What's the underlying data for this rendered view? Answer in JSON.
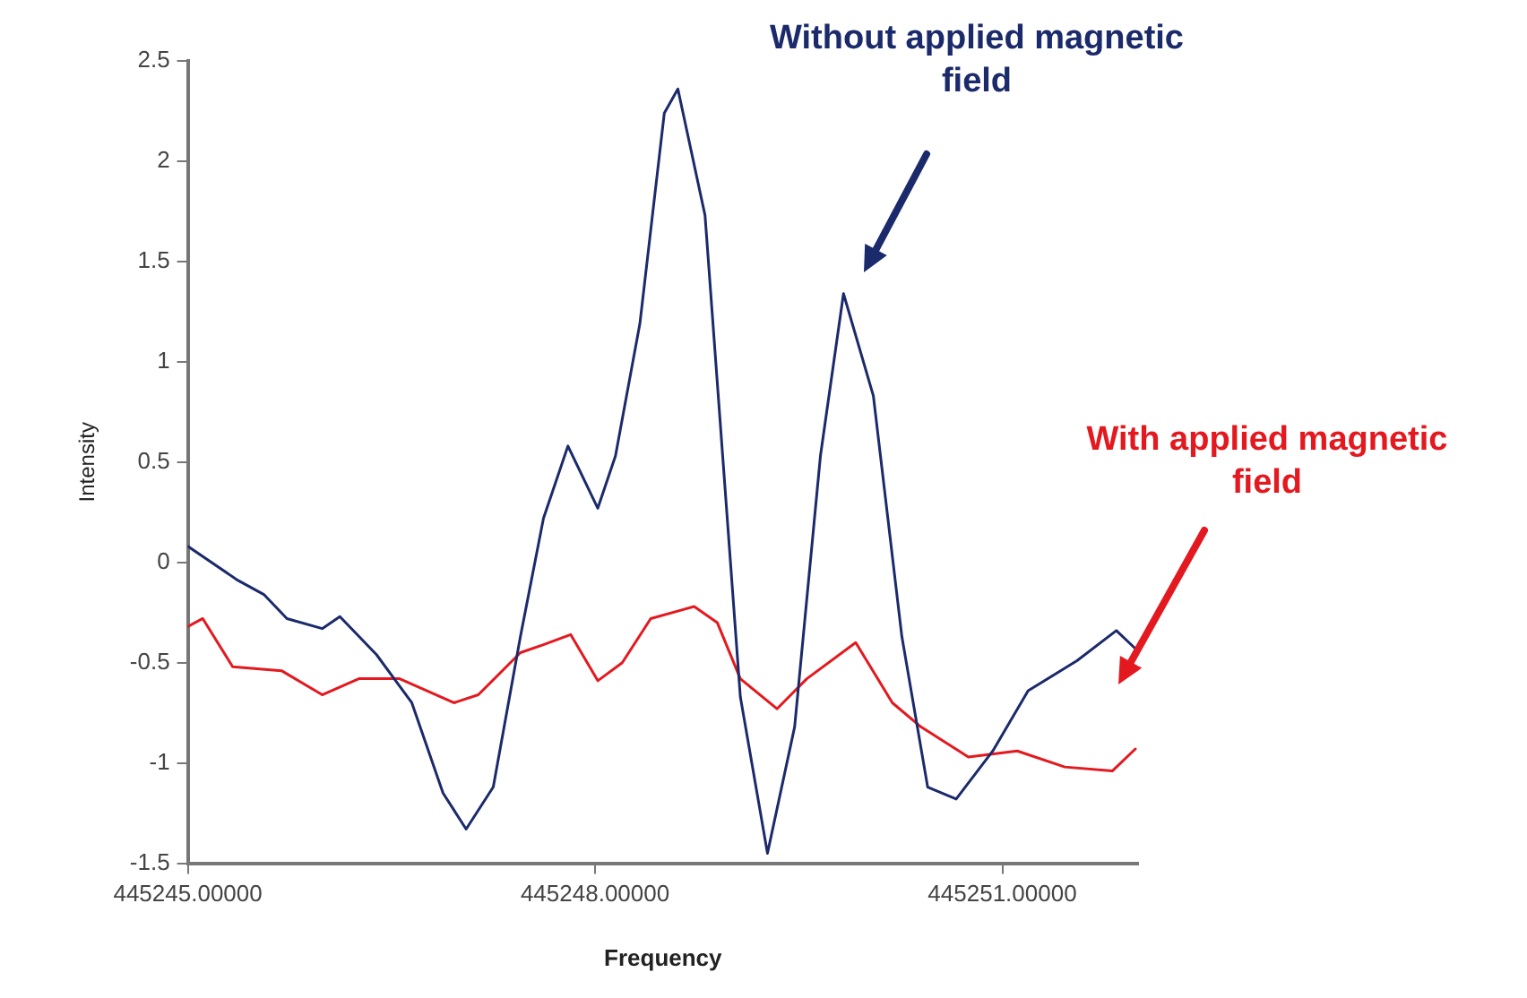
{
  "chart_data": {
    "type": "line",
    "xlabel": "Frequency",
    "ylabel": "Intensity",
    "xlim": [
      445245,
      445252
    ],
    "xticks": [
      {
        "value": 445245,
        "label": "445245.00000"
      },
      {
        "value": 445248,
        "label": "445248.00000"
      },
      {
        "value": 445251,
        "label": "445251.00000"
      }
    ],
    "ylim": [
      -1.5,
      2.5
    ],
    "yticks": [
      -1.5,
      -1,
      -0.5,
      0,
      0.5,
      1,
      1.5,
      2,
      2.5
    ],
    "grid": false,
    "legend": false,
    "marker": "none",
    "line_style": "solid",
    "annotations": [
      "Without applied magnetic field",
      "With applied magnetic field"
    ],
    "series": [
      {
        "color": "#1b2a6b",
        "x": [
          445245.0,
          445245.37,
          445245.56,
          445245.73,
          445245.99,
          445246.12,
          445246.39,
          445246.65,
          445246.88,
          445247.05,
          445247.25,
          445247.45,
          445247.62,
          445247.8,
          445248.02,
          445248.15,
          445248.33,
          445248.51,
          445248.61,
          445248.81,
          445248.94,
          445249.07,
          445249.27,
          445249.47,
          445249.66,
          445249.83,
          445250.05,
          445250.26,
          445250.45,
          445250.66,
          445250.93,
          445251.19,
          445251.55,
          445251.84,
          445251.98
        ],
        "values": [
          0.08,
          -0.09,
          -0.16,
          -0.28,
          -0.33,
          -0.27,
          -0.46,
          -0.7,
          -1.15,
          -1.33,
          -1.12,
          -0.37,
          0.22,
          0.58,
          0.27,
          0.53,
          1.19,
          2.24,
          2.36,
          1.73,
          0.53,
          -0.67,
          -1.45,
          -0.82,
          0.53,
          1.34,
          0.83,
          -0.37,
          -1.12,
          -1.18,
          -0.94,
          -0.64,
          -0.49,
          -0.34,
          -0.43
        ]
      },
      {
        "color": "#e3191f",
        "x": [
          445245.0,
          445245.11,
          445245.33,
          445245.69,
          445245.99,
          445246.26,
          445246.56,
          445246.96,
          445247.14,
          445247.45,
          445247.62,
          445247.82,
          445248.02,
          445248.2,
          445248.41,
          445248.73,
          445248.9,
          445249.07,
          445249.34,
          445249.56,
          445249.92,
          445250.19,
          445250.4,
          445250.75,
          445251.11,
          445251.46,
          445251.81,
          445251.98
        ],
        "values": [
          -0.32,
          -0.28,
          -0.52,
          -0.54,
          -0.66,
          -0.58,
          -0.58,
          -0.7,
          -0.66,
          -0.45,
          -0.41,
          -0.36,
          -0.59,
          -0.5,
          -0.28,
          -0.22,
          -0.3,
          -0.58,
          -0.73,
          -0.58,
          -0.4,
          -0.7,
          -0.82,
          -0.97,
          -0.94,
          -1.02,
          -1.04,
          -0.93
        ]
      }
    ]
  }
}
